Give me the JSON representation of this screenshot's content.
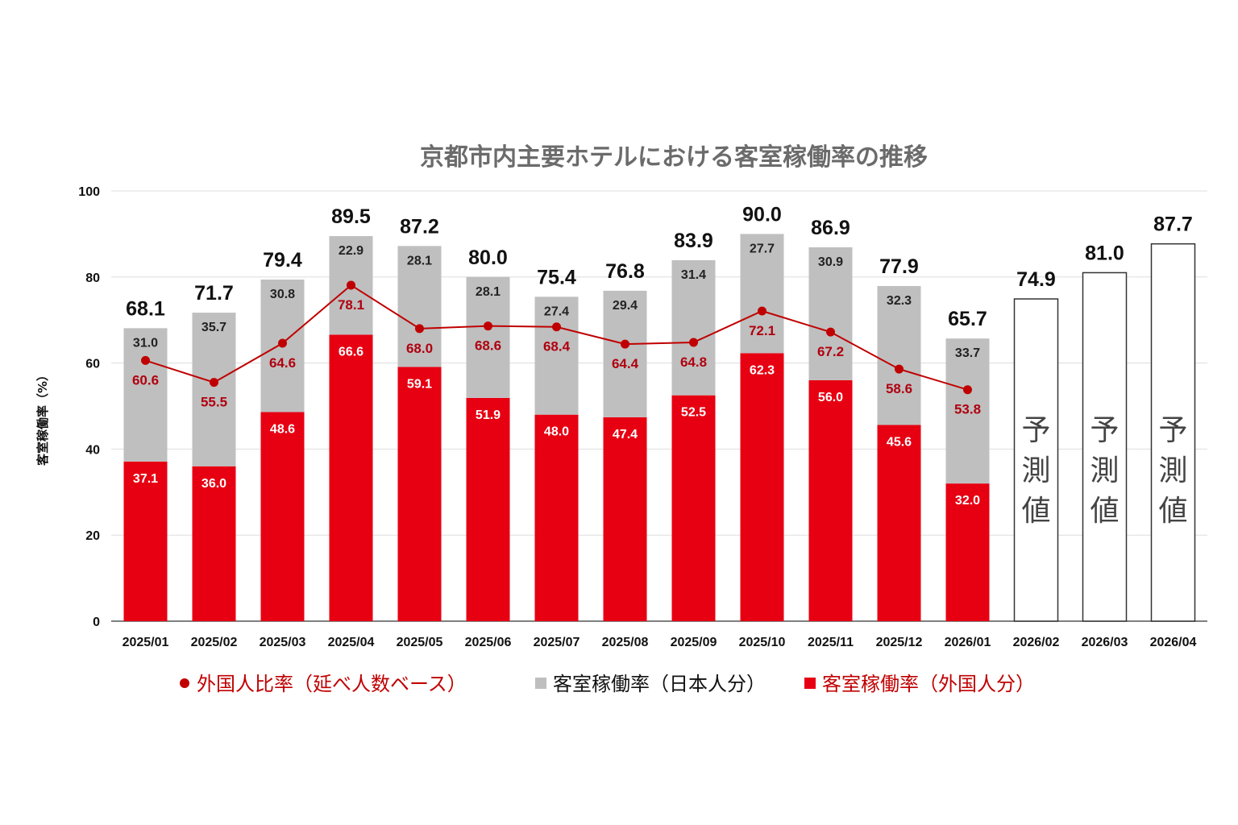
{
  "chart_data": {
    "type": "bar",
    "title": "京都市内主要ホテルにおける客室稼働率の推移",
    "ylabel": "客室稼働率（%）",
    "ylim": [
      0,
      100
    ],
    "yticks": [
      0,
      20,
      40,
      60,
      80,
      100
    ],
    "grid": true,
    "legend_position": "bottom",
    "categories": [
      "2025/01",
      "2025/02",
      "2025/03",
      "2025/04",
      "2025/05",
      "2025/06",
      "2025/07",
      "2025/08",
      "2025/09",
      "2025/10",
      "2025/11",
      "2025/12",
      "2026/01",
      "2026/02",
      "2026/03",
      "2026/04"
    ],
    "totals": [
      "68.1",
      "71.7",
      "79.4",
      "89.5",
      "87.2",
      "80.0",
      "75.4",
      "76.8",
      "83.9",
      "90.0",
      "86.9",
      "77.9",
      "65.7",
      "74.9",
      "81.0",
      "87.7"
    ],
    "series": [
      {
        "name": "客室稼働率（外国人分）",
        "type": "bar",
        "color": "#e60012",
        "values": [
          37.1,
          36.0,
          48.6,
          66.6,
          59.1,
          51.9,
          48.0,
          47.4,
          52.5,
          62.3,
          56.0,
          45.6,
          32.0,
          null,
          null,
          null
        ],
        "labels": [
          "37.1",
          "36.0",
          "48.6",
          "66.6",
          "59.1",
          "51.9",
          "48.0",
          "47.4",
          "52.5",
          "62.3",
          "56.0",
          "45.6",
          "32.0",
          "",
          "",
          ""
        ]
      },
      {
        "name": "客室稼働率（日本人分）",
        "type": "bar",
        "color": "#bfbfbf",
        "values": [
          31.0,
          35.7,
          30.8,
          22.9,
          28.1,
          28.1,
          27.4,
          29.4,
          31.4,
          27.7,
          30.9,
          32.3,
          33.7,
          null,
          null,
          null
        ],
        "labels": [
          "31.0",
          "35.7",
          "30.8",
          "22.9",
          "28.1",
          "28.1",
          "27.4",
          "29.4",
          "31.4",
          "27.7",
          "30.9",
          "32.3",
          "33.7",
          "",
          "",
          ""
        ]
      },
      {
        "name": "外国人比率（延べ人数ベース）",
        "type": "line",
        "color": "#c00000",
        "values": [
          60.6,
          55.5,
          64.6,
          78.1,
          68.0,
          68.6,
          68.4,
          64.4,
          64.8,
          72.1,
          67.2,
          58.6,
          53.8,
          null,
          null,
          null
        ],
        "labels": [
          "60.6",
          "55.5",
          "64.6",
          "78.1",
          "68.0",
          "68.6",
          "68.4",
          "64.4",
          "64.8",
          "72.1",
          "67.2",
          "58.6",
          "53.8",
          "",
          "",
          ""
        ]
      }
    ],
    "forecast": {
      "values": [
        74.9,
        81.0,
        87.7
      ],
      "label_chars": [
        "予",
        "測",
        "値"
      ]
    }
  },
  "legend": {
    "items": [
      {
        "label": "外国人比率（延べ人数ベース）",
        "marker": "circle",
        "color": "#c00000",
        "text_color": "#c00000"
      },
      {
        "label": "客室稼働率（日本人分）",
        "marker": "square",
        "color": "#bfbfbf",
        "text_color": "#111111"
      },
      {
        "label": "客室稼働率（外国人分）",
        "marker": "square",
        "color": "#e60012",
        "text_color": "#c00000"
      }
    ]
  }
}
